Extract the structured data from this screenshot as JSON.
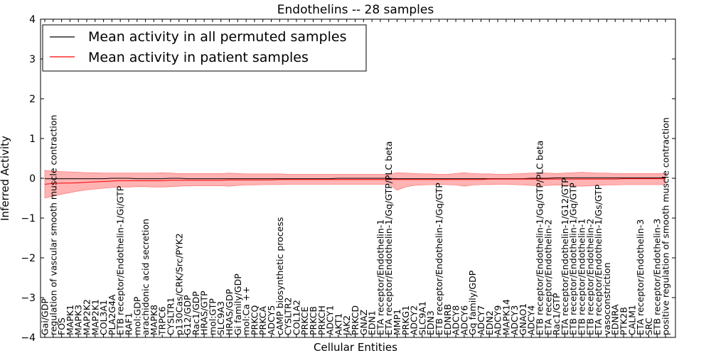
{
  "chart_data": {
    "type": "line",
    "title": "Endothelins -- 28 samples",
    "xlabel": "Cellular Entities",
    "ylabel": "Inferred Activity",
    "ylim": [
      -4,
      4
    ],
    "yticks": [
      -4,
      -3,
      -2,
      -1,
      0,
      1,
      2,
      3,
      4
    ],
    "grid": false,
    "legend_position": "top-left",
    "colors": {
      "permuted": "#000000",
      "patient": "#ff0000",
      "band": "#ff9999"
    },
    "x_labels": [
      "Gai/GDP",
      "regulation of vascular smooth muscle contraction",
      "FOS",
      "MAPK1",
      "MAPK3",
      "MAP2K2",
      "MAP2K1",
      "COL3A1",
      "PLA2G4A",
      "ETB receptor/Endothelin-1/Gi/GTP",
      "RAF1",
      "mol:GDP",
      "arachidonic acid secretion",
      "MAPK8",
      "TRPC6",
      "CYSLTR1",
      "p130Cas/CRK/Src/PYK2",
      "G12/GDP",
      "Rac1/GDP",
      "HRAS/GTP",
      "mol:GTP",
      "SLC9A3",
      "HRAS/GDP",
      "Gi family/GDP",
      "mol:Ca ++",
      "PRKCQ",
      "PRKCA",
      "ADCY5",
      "cAMP biosynthetic process",
      "CYSLTR2",
      "COL1A2",
      "PRKCE",
      "PRKCB",
      "PRKCH",
      "ADCY1",
      "AKT1",
      "JAK2",
      "PRKCD",
      "GNAZ",
      "EDN1",
      "ETA receptor/Endothelin-1",
      "ETA receptor/Endothelin-1/Gq/GTP/PLC beta",
      "MMP1",
      "PRKG1",
      "ADCY2",
      "SLC9A1",
      "EDN3",
      "ETB receptor/Endothelin-1/Gq/GTP",
      "EDNRB",
      "ADCY8",
      "ADCY6",
      "Gq family/GDP",
      "ADCY7",
      "EDN2",
      "ADCY9",
      "MAPK14",
      "ADCY3",
      "GNAO1",
      "ADCY4",
      "ETB receptor/Endothelin-1/Gq/GTP/PLC beta",
      "ETA receptor/Endothelin-2",
      "Rac1/GTP",
      "ETA receptor/Endothelin-1/G12/GTP",
      "ETB receptor/Endothelin-1/Gq/GTP",
      "ETB receptor/Endothelin-1",
      "ETB receptor/Endothelin-2",
      "ETA receptor/Endothelin-1/Gs/GTP",
      "vasoconstriction",
      "EDNRA",
      "PTK2B",
      "CALM1",
      "ETA receptor/Endothelin-3",
      "SRC",
      "ETB receptor/Endothelin-3",
      "positive regulation of smooth muscle contraction"
    ],
    "series": [
      {
        "name": "Mean activity in all permuted samples",
        "values": [
          -0.01,
          -0.01,
          -0.01,
          -0.01,
          -0.01,
          -0.01,
          -0.01,
          -0.01,
          0.0,
          0.0,
          0.0,
          -0.01,
          -0.01,
          -0.01,
          -0.01,
          0.0,
          0.0,
          -0.01,
          -0.01,
          -0.01,
          -0.01,
          -0.01,
          -0.01,
          -0.01,
          -0.01,
          -0.01,
          -0.01,
          -0.01,
          -0.01,
          -0.01,
          -0.01,
          -0.01,
          -0.01,
          -0.01,
          -0.01,
          0.0,
          0.0,
          0.0,
          0.0,
          0.0,
          0.0,
          0.0,
          -0.01,
          -0.01,
          -0.01,
          -0.01,
          -0.01,
          -0.01,
          -0.01,
          -0.01,
          -0.01,
          -0.01,
          -0.01,
          -0.01,
          -0.01,
          -0.01,
          -0.01,
          -0.01,
          0.0,
          0.0,
          0.0,
          0.01,
          0.01,
          0.01,
          0.01,
          0.01,
          0.01,
          0.01,
          0.01,
          0.01,
          0.01,
          0.01,
          0.01,
          0.01,
          0.01
        ]
      },
      {
        "name": "Mean activity in patient samples",
        "values": [
          -0.15,
          -0.13,
          -0.12,
          -0.12,
          -0.11,
          -0.1,
          -0.09,
          -0.08,
          -0.07,
          -0.06,
          -0.06,
          -0.06,
          -0.06,
          -0.06,
          -0.06,
          -0.05,
          -0.05,
          -0.05,
          -0.05,
          -0.05,
          -0.05,
          -0.05,
          -0.04,
          -0.04,
          -0.04,
          -0.04,
          -0.04,
          -0.04,
          -0.03,
          -0.03,
          -0.03,
          -0.03,
          -0.03,
          -0.03,
          -0.03,
          -0.03,
          -0.03,
          -0.03,
          -0.03,
          -0.03,
          -0.03,
          -0.03,
          -0.03,
          -0.03,
          -0.03,
          -0.03,
          -0.03,
          -0.03,
          -0.03,
          -0.03,
          -0.03,
          -0.03,
          -0.03,
          -0.02,
          -0.02,
          -0.02,
          -0.02,
          -0.02,
          -0.02,
          -0.02,
          -0.02,
          -0.02,
          -0.02,
          -0.02,
          -0.02,
          -0.02,
          -0.02,
          -0.02,
          -0.02,
          -0.01,
          -0.01,
          -0.01,
          -0.01,
          -0.01,
          -0.01
        ],
        "band_upper": [
          0.2,
          0.18,
          0.17,
          0.16,
          0.15,
          0.14,
          0.14,
          0.13,
          0.13,
          0.13,
          0.13,
          0.13,
          0.13,
          0.13,
          0.14,
          0.13,
          0.12,
          0.12,
          0.12,
          0.12,
          0.12,
          0.12,
          0.13,
          0.12,
          0.11,
          0.11,
          0.11,
          0.11,
          0.11,
          0.1,
          0.1,
          0.1,
          0.1,
          0.1,
          0.1,
          0.1,
          0.1,
          0.1,
          0.1,
          0.1,
          0.1,
          0.1,
          0.14,
          0.13,
          0.12,
          0.11,
          0.11,
          0.1,
          0.1,
          0.12,
          0.14,
          0.12,
          0.11,
          0.11,
          0.1,
          0.1,
          0.11,
          0.12,
          0.13,
          0.14,
          0.13,
          0.12,
          0.13,
          0.14,
          0.15,
          0.14,
          0.13,
          0.13,
          0.12,
          0.12,
          0.12,
          0.12,
          0.12,
          0.12,
          0.12
        ],
        "band_lower": [
          -0.5,
          -0.45,
          -0.4,
          -0.36,
          -0.32,
          -0.29,
          -0.27,
          -0.25,
          -0.23,
          -0.22,
          -0.22,
          -0.21,
          -0.21,
          -0.22,
          -0.22,
          -0.21,
          -0.2,
          -0.19,
          -0.19,
          -0.19,
          -0.19,
          -0.19,
          -0.2,
          -0.18,
          -0.17,
          -0.17,
          -0.16,
          -0.16,
          -0.16,
          -0.15,
          -0.15,
          -0.15,
          -0.15,
          -0.15,
          -0.15,
          -0.15,
          -0.15,
          -0.15,
          -0.15,
          -0.15,
          -0.15,
          -0.15,
          -0.3,
          -0.22,
          -0.18,
          -0.17,
          -0.16,
          -0.16,
          -0.16,
          -0.17,
          -0.2,
          -0.17,
          -0.16,
          -0.16,
          -0.15,
          -0.15,
          -0.16,
          -0.17,
          -0.18,
          -0.19,
          -0.18,
          -0.17,
          -0.18,
          -0.19,
          -0.2,
          -0.19,
          -0.18,
          -0.17,
          -0.17,
          -0.16,
          -0.16,
          -0.16,
          -0.16,
          -0.16,
          -0.16
        ]
      }
    ]
  }
}
